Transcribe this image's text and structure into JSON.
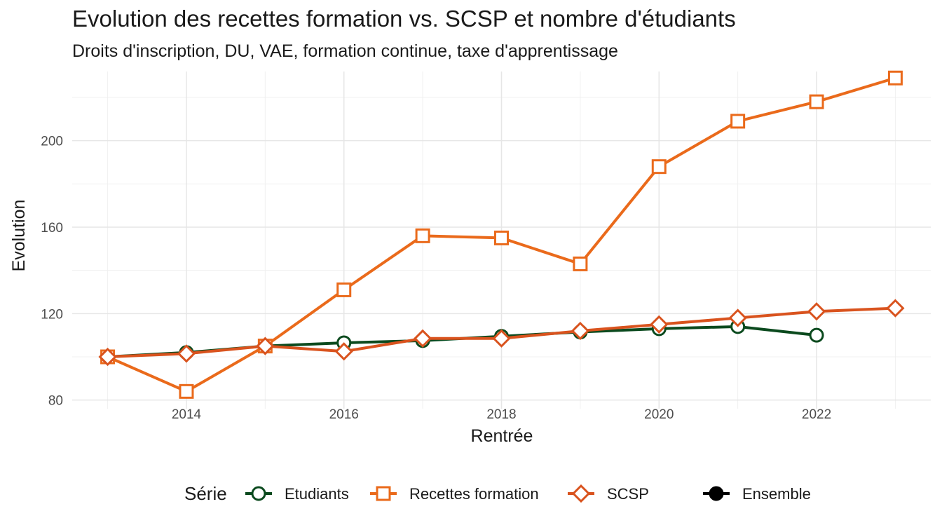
{
  "chart_data": {
    "type": "line",
    "title": "Evolution des recettes formation vs. SCSP et nombre d'étudiants",
    "subtitle": "Droits d'inscription, DU, VAE, formation continue, taxe d'apprentissage",
    "xlabel": "Rentrée",
    "ylabel": "Evolution",
    "xlim": [
      2012.55,
      2023.45
    ],
    "ylim": [
      76,
      232
    ],
    "x_ticks": [
      2014,
      2016,
      2018,
      2020,
      2022
    ],
    "y_ticks": [
      80,
      120,
      160,
      200
    ],
    "grid": true,
    "legend_position": "bottom",
    "legend_title": "Série",
    "series": [
      {
        "name": "Etudiants",
        "color": "#0b4a1e",
        "marker": "circle",
        "x": [
          2013,
          2014,
          2015,
          2016,
          2017,
          2018,
          2019,
          2020,
          2021,
          2022
        ],
        "values": [
          100,
          102,
          105,
          106.5,
          107.5,
          109.5,
          111.5,
          113,
          114,
          110
        ]
      },
      {
        "name": "Recettes formation",
        "color": "#ea6a1b",
        "marker": "square",
        "x": [
          2013,
          2014,
          2015,
          2016,
          2017,
          2018,
          2019,
          2020,
          2021,
          2022,
          2023
        ],
        "values": [
          100,
          84,
          105,
          131,
          156,
          155,
          143,
          188,
          209,
          218,
          229
        ]
      },
      {
        "name": "SCSP",
        "color": "#d9531e",
        "marker": "diamond",
        "x": [
          2013,
          2014,
          2015,
          2016,
          2017,
          2018,
          2019,
          2020,
          2021,
          2022,
          2023
        ],
        "values": [
          100,
          101.5,
          105,
          102.5,
          108.5,
          108.5,
          112,
          115,
          118,
          121,
          122.5
        ]
      }
    ],
    "legend_extra": {
      "name": "Ensemble",
      "color": "#000000",
      "marker": "filled-circle"
    }
  }
}
